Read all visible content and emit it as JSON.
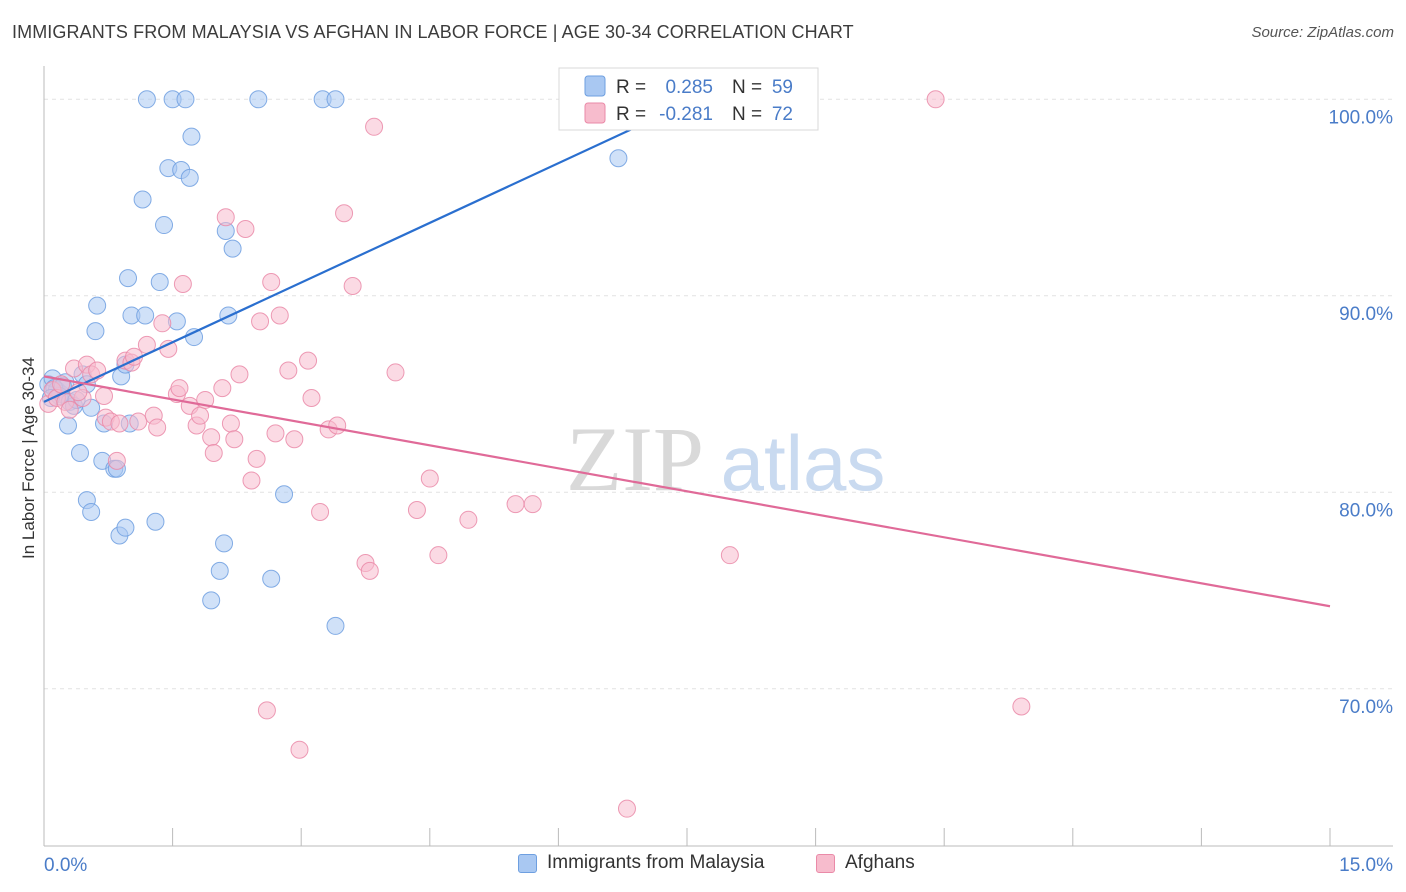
{
  "header": {
    "title": "IMMIGRANTS FROM MALAYSIA VS AFGHAN IN LABOR FORCE | AGE 30-34 CORRELATION CHART",
    "source": "Source: ZipAtlas.com"
  },
  "watermark": {
    "zip": "ZIP",
    "atlas": "atlas"
  },
  "colors": {
    "blue_fill": "#a9c8f2",
    "blue_stroke": "#6e9fe0",
    "blue_line": "#2a6fcf",
    "pink_fill": "#f7bccd",
    "pink_stroke": "#ea8aa8",
    "pink_line": "#e06a98",
    "axis_label": "#4a7cc8",
    "grid": "#e2e2e2"
  },
  "chart_data": {
    "type": "scatter",
    "title": "IMMIGRANTS FROM MALAYSIA VS AFGHAN IN LABOR FORCE | AGE 30-34 CORRELATION CHART",
    "xlabel": "",
    "ylabel": "In Labor Force | Age 30-34",
    "xlim": [
      0,
      15
    ],
    "ylim": [
      62,
      102
    ],
    "x_tick_labels": [
      "0.0%",
      "15.0%"
    ],
    "y_ticks": [
      70,
      80,
      90,
      100
    ],
    "y_tick_labels": [
      "70.0%",
      "80.0%",
      "90.0%",
      "100.0%"
    ],
    "legend_stats": [
      {
        "r_label": "R =",
        "r_value": "0.285",
        "n_label": "N =",
        "n_value": "59"
      },
      {
        "r_label": "R =",
        "r_value": "-0.281",
        "n_label": "N =",
        "n_value": "72"
      }
    ],
    "series": [
      {
        "name": "Immigrants from Malaysia",
        "color": "#6e9fe0",
        "trend": {
          "x0": 0.0,
          "y0": 84.6,
          "x1": 8.1,
          "y1": 101.0
        },
        "points": [
          [
            0.05,
            85.5
          ],
          [
            0.1,
            85.8
          ],
          [
            0.15,
            85.2
          ],
          [
            0.2,
            85.0
          ],
          [
            0.25,
            85.6
          ],
          [
            0.12,
            85.3
          ],
          [
            0.18,
            84.9
          ],
          [
            0.3,
            84.6
          ],
          [
            0.35,
            84.4
          ],
          [
            0.45,
            86.0
          ],
          [
            0.5,
            85.5
          ],
          [
            0.55,
            84.3
          ],
          [
            0.28,
            83.4
          ],
          [
            0.42,
            82.0
          ],
          [
            0.5,
            79.6
          ],
          [
            0.55,
            79.0
          ],
          [
            0.6,
            88.2
          ],
          [
            0.62,
            89.5
          ],
          [
            0.7,
            83.5
          ],
          [
            0.68,
            81.6
          ],
          [
            0.82,
            81.2
          ],
          [
            0.85,
            81.2
          ],
          [
            0.88,
            77.8
          ],
          [
            0.95,
            78.2
          ],
          [
            0.9,
            85.9
          ],
          [
            0.95,
            86.5
          ],
          [
            1.0,
            83.5
          ],
          [
            0.98,
            90.9
          ],
          [
            1.02,
            89.0
          ],
          [
            1.15,
            94.9
          ],
          [
            1.18,
            89.0
          ],
          [
            1.2,
            100.0
          ],
          [
            1.3,
            78.5
          ],
          [
            1.35,
            90.7
          ],
          [
            1.4,
            93.6
          ],
          [
            1.45,
            96.5
          ],
          [
            1.5,
            100.0
          ],
          [
            1.55,
            88.7
          ],
          [
            1.6,
            96.4
          ],
          [
            1.65,
            100.0
          ],
          [
            1.7,
            96.0
          ],
          [
            1.72,
            98.1
          ],
          [
            1.75,
            87.9
          ],
          [
            1.95,
            74.5
          ],
          [
            2.05,
            76.0
          ],
          [
            2.1,
            77.4
          ],
          [
            2.12,
            93.3
          ],
          [
            2.15,
            89.0
          ],
          [
            2.2,
            92.4
          ],
          [
            2.5,
            100.0
          ],
          [
            2.65,
            75.6
          ],
          [
            2.8,
            79.9
          ],
          [
            3.25,
            100.0
          ],
          [
            3.4,
            100.0
          ],
          [
            3.4,
            73.2
          ],
          [
            6.7,
            97.0
          ],
          [
            0.08,
            84.8
          ],
          [
            0.22,
            85.4
          ],
          [
            0.38,
            84.7
          ]
        ]
      },
      {
        "name": "Afghans",
        "color": "#ea8aa8",
        "trend": {
          "x0": 0.0,
          "y0": 85.9,
          "x1": 15.0,
          "y1": 74.2
        },
        "points": [
          [
            0.05,
            84.5
          ],
          [
            0.1,
            85.2
          ],
          [
            0.15,
            84.8
          ],
          [
            0.2,
            85.5
          ],
          [
            0.25,
            84.6
          ],
          [
            0.3,
            84.2
          ],
          [
            0.35,
            86.3
          ],
          [
            0.45,
            84.8
          ],
          [
            0.5,
            86.5
          ],
          [
            0.55,
            86.0
          ],
          [
            0.62,
            86.2
          ],
          [
            0.7,
            84.9
          ],
          [
            0.72,
            83.8
          ],
          [
            0.78,
            83.6
          ],
          [
            0.85,
            81.6
          ],
          [
            0.88,
            83.5
          ],
          [
            0.95,
            86.7
          ],
          [
            1.02,
            86.6
          ],
          [
            1.05,
            86.9
          ],
          [
            1.1,
            83.6
          ],
          [
            1.2,
            87.5
          ],
          [
            1.28,
            83.9
          ],
          [
            1.32,
            83.3
          ],
          [
            1.38,
            88.6
          ],
          [
            1.45,
            87.3
          ],
          [
            1.55,
            85.0
          ],
          [
            1.58,
            85.3
          ],
          [
            1.62,
            90.6
          ],
          [
            1.7,
            84.4
          ],
          [
            1.78,
            83.4
          ],
          [
            1.82,
            83.9
          ],
          [
            1.88,
            84.7
          ],
          [
            1.95,
            82.8
          ],
          [
            1.98,
            82.0
          ],
          [
            2.08,
            85.3
          ],
          [
            2.12,
            94.0
          ],
          [
            2.18,
            83.5
          ],
          [
            2.22,
            82.7
          ],
          [
            2.28,
            86.0
          ],
          [
            2.35,
            93.4
          ],
          [
            2.42,
            80.6
          ],
          [
            2.48,
            81.7
          ],
          [
            2.52,
            88.7
          ],
          [
            2.6,
            68.9
          ],
          [
            2.65,
            90.7
          ],
          [
            2.7,
            83.0
          ],
          [
            2.75,
            89.0
          ],
          [
            2.85,
            86.2
          ],
          [
            2.92,
            82.7
          ],
          [
            2.98,
            66.9
          ],
          [
            3.08,
            86.7
          ],
          [
            3.12,
            84.8
          ],
          [
            3.22,
            79.0
          ],
          [
            3.32,
            83.2
          ],
          [
            3.42,
            83.4
          ],
          [
            3.5,
            94.2
          ],
          [
            3.6,
            90.5
          ],
          [
            3.75,
            76.4
          ],
          [
            3.8,
            76.0
          ],
          [
            3.85,
            98.6
          ],
          [
            4.1,
            86.1
          ],
          [
            4.35,
            79.1
          ],
          [
            4.5,
            80.7
          ],
          [
            4.6,
            76.8
          ],
          [
            4.95,
            78.6
          ],
          [
            5.5,
            79.4
          ],
          [
            5.7,
            79.4
          ],
          [
            6.8,
            63.9
          ],
          [
            8.0,
            76.8
          ],
          [
            10.4,
            100.0
          ],
          [
            11.4,
            69.1
          ],
          [
            0.4,
            85.1
          ]
        ]
      }
    ]
  }
}
